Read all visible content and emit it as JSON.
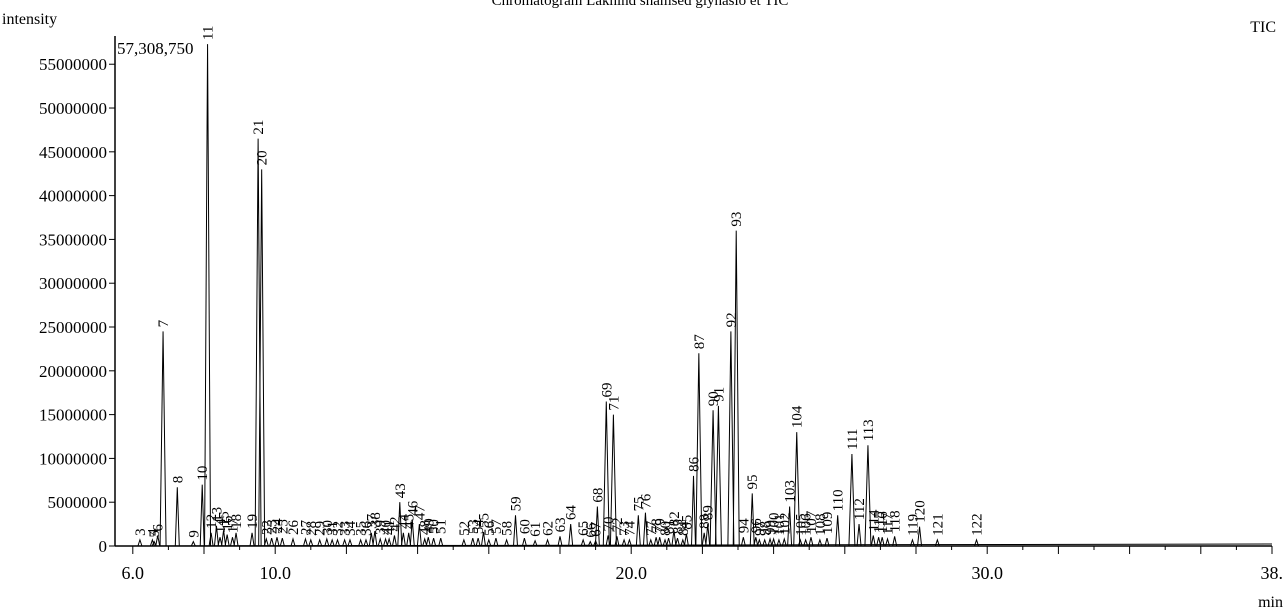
{
  "chart_data": {
    "type": "line",
    "title": "Chromatogram Lakhind shamsed glyhaslo et TIC",
    "ylabel": "intensity",
    "xlabel": "min",
    "series_label": "TIC",
    "xlim": [
      5.5,
      38.0
    ],
    "ylim": [
      0,
      57308750
    ],
    "x_ticks": [
      6.0,
      10.0,
      20.0,
      30.0,
      38.0
    ],
    "x_tick_labels": [
      "6.0",
      "10.0",
      "20.0",
      "30.0",
      "38."
    ],
    "y_ticks": [
      0,
      5000000,
      10000000,
      15000000,
      20000000,
      25000000,
      30000000,
      35000000,
      40000000,
      45000000,
      50000000,
      55000000
    ],
    "y_tick_labels": [
      "0",
      "5000000",
      "10000000",
      "15000000",
      "20000000",
      "25000000",
      "30000000",
      "35000000",
      "40000000",
      "45000000",
      "50000000",
      "55000000"
    ],
    "max_label": "57,308,750",
    "grid": false,
    "line_color": "#000000",
    "peaks": [
      {
        "label": "3",
        "rt": 6.2,
        "height": 700000
      },
      {
        "label": "4",
        "rt": 6.55,
        "height": 700000
      },
      {
        "label": "5",
        "rt": 6.6,
        "height": 500000
      },
      {
        "label": "6",
        "rt": 6.7,
        "height": 1200000
      },
      {
        "label": "7",
        "rt": 6.85,
        "height": 24500000
      },
      {
        "label": "8",
        "rt": 7.25,
        "height": 6700000
      },
      {
        "label": "9",
        "rt": 7.7,
        "height": 500000
      },
      {
        "label": "10",
        "rt": 7.95,
        "height": 7000000
      },
      {
        "label": "11",
        "rt": 8.1,
        "height": 57300000
      },
      {
        "label": "12",
        "rt": 8.2,
        "height": 1500000
      },
      {
        "label": "13",
        "rt": 8.35,
        "height": 2300000
      },
      {
        "label": "14",
        "rt": 8.45,
        "height": 1000000
      },
      {
        "label": "15",
        "rt": 8.55,
        "height": 1800000
      },
      {
        "label": "16",
        "rt": 8.65,
        "height": 1300000
      },
      {
        "label": "17",
        "rt": 8.8,
        "height": 1000000
      },
      {
        "label": "18",
        "rt": 8.9,
        "height": 1500000
      },
      {
        "label": "19",
        "rt": 9.35,
        "height": 1500000
      },
      {
        "label": "20",
        "rt": 9.62,
        "height": 43000000
      },
      {
        "label": "21",
        "rt": 9.52,
        "height": 46500000
      },
      {
        "label": "22",
        "rt": 9.75,
        "height": 800000
      },
      {
        "label": "23",
        "rt": 9.9,
        "height": 900000
      },
      {
        "label": "24",
        "rt": 10.05,
        "height": 1000000
      },
      {
        "label": "25",
        "rt": 10.2,
        "height": 900000
      },
      {
        "label": "26",
        "rt": 10.5,
        "height": 800000
      },
      {
        "label": "27",
        "rt": 10.85,
        "height": 800000
      },
      {
        "label": "28",
        "rt": 11.0,
        "height": 700000
      },
      {
        "label": "29",
        "rt": 11.25,
        "height": 700000
      },
      {
        "label": "30",
        "rt": 11.45,
        "height": 800000
      },
      {
        "label": "31",
        "rt": 11.6,
        "height": 700000
      },
      {
        "label": "32",
        "rt": 11.75,
        "height": 700000
      },
      {
        "label": "33",
        "rt": 11.95,
        "height": 700000
      },
      {
        "label": "34",
        "rt": 12.1,
        "height": 700000
      },
      {
        "label": "35",
        "rt": 12.4,
        "height": 700000
      },
      {
        "label": "36",
        "rt": 12.55,
        "height": 700000
      },
      {
        "label": "37",
        "rt": 12.7,
        "height": 1500000
      },
      {
        "label": "38",
        "rt": 12.8,
        "height": 1700000
      },
      {
        "label": "39",
        "rt": 12.95,
        "height": 800000
      },
      {
        "label": "40",
        "rt": 13.1,
        "height": 800000
      },
      {
        "label": "41",
        "rt": 13.2,
        "height": 800000
      },
      {
        "label": "42",
        "rt": 13.35,
        "height": 1200000
      },
      {
        "label": "43",
        "rt": 13.5,
        "height": 5000000
      },
      {
        "label": "44",
        "rt": 13.6,
        "height": 1500000
      },
      {
        "label": "45",
        "rt": 13.75,
        "height": 1500000
      },
      {
        "label": "46",
        "rt": 13.85,
        "height": 3000000
      },
      {
        "label": "47",
        "rt": 14.05,
        "height": 2500000
      },
      {
        "label": "48",
        "rt": 14.2,
        "height": 800000
      },
      {
        "label": "49",
        "rt": 14.3,
        "height": 1000000
      },
      {
        "label": "50",
        "rt": 14.45,
        "height": 900000
      },
      {
        "label": "51",
        "rt": 14.65,
        "height": 900000
      },
      {
        "label": "52",
        "rt": 15.3,
        "height": 700000
      },
      {
        "label": "53",
        "rt": 15.55,
        "height": 900000
      },
      {
        "label": "54",
        "rt": 15.7,
        "height": 900000
      },
      {
        "label": "55",
        "rt": 15.85,
        "height": 1600000
      },
      {
        "label": "56",
        "rt": 16.0,
        "height": 700000
      },
      {
        "label": "57",
        "rt": 16.2,
        "height": 900000
      },
      {
        "label": "58",
        "rt": 16.5,
        "height": 700000
      },
      {
        "label": "59",
        "rt": 16.75,
        "height": 3500000
      },
      {
        "label": "60",
        "rt": 17.0,
        "height": 900000
      },
      {
        "label": "61",
        "rt": 17.3,
        "height": 600000
      },
      {
        "label": "62",
        "rt": 17.65,
        "height": 700000
      },
      {
        "label": "63",
        "rt": 18.0,
        "height": 1100000
      },
      {
        "label": "64",
        "rt": 18.3,
        "height": 2500000
      },
      {
        "label": "65",
        "rt": 18.65,
        "height": 700000
      },
      {
        "label": "66",
        "rt": 18.85,
        "height": 500000
      },
      {
        "label": "67",
        "rt": 19.0,
        "height": 600000
      },
      {
        "label": "68",
        "rt": 19.05,
        "height": 4500000
      },
      {
        "label": "69",
        "rt": 19.3,
        "height": 16500000
      },
      {
        "label": "70",
        "rt": 19.35,
        "height": 1200000
      },
      {
        "label": "71",
        "rt": 19.5,
        "height": 15000000
      },
      {
        "label": "72",
        "rt": 19.6,
        "height": 1100000
      },
      {
        "label": "73",
        "rt": 19.8,
        "height": 700000
      },
      {
        "label": "74",
        "rt": 19.95,
        "height": 700000
      },
      {
        "label": "75",
        "rt": 20.2,
        "height": 3500000
      },
      {
        "label": "76",
        "rt": 20.4,
        "height": 3800000
      },
      {
        "label": "77",
        "rt": 20.55,
        "height": 700000
      },
      {
        "label": "78",
        "rt": 20.7,
        "height": 1000000
      },
      {
        "label": "79",
        "rt": 20.8,
        "height": 1000000
      },
      {
        "label": "80",
        "rt": 20.95,
        "height": 700000
      },
      {
        "label": "81",
        "rt": 21.05,
        "height": 900000
      },
      {
        "label": "82",
        "rt": 21.2,
        "height": 1800000
      },
      {
        "label": "83",
        "rt": 21.3,
        "height": 900000
      },
      {
        "label": "84",
        "rt": 21.45,
        "height": 700000
      },
      {
        "label": "85",
        "rt": 21.55,
        "height": 1400000
      },
      {
        "label": "86",
        "rt": 21.75,
        "height": 8000000
      },
      {
        "label": "87",
        "rt": 21.9,
        "height": 22000000
      },
      {
        "label": "88",
        "rt": 22.05,
        "height": 1500000
      },
      {
        "label": "89",
        "rt": 22.15,
        "height": 2500000
      },
      {
        "label": "90",
        "rt": 22.3,
        "height": 15500000
      },
      {
        "label": "91",
        "rt": 22.45,
        "height": 16000000
      },
      {
        "label": "92",
        "rt": 22.8,
        "height": 24500000
      },
      {
        "label": "93",
        "rt": 22.95,
        "height": 36000000
      },
      {
        "label": "94",
        "rt": 23.15,
        "height": 1000000
      },
      {
        "label": "95",
        "rt": 23.4,
        "height": 6000000
      },
      {
        "label": "96",
        "rt": 23.5,
        "height": 1000000
      },
      {
        "label": "97",
        "rt": 23.6,
        "height": 700000
      },
      {
        "label": "98",
        "rt": 23.75,
        "height": 700000
      },
      {
        "label": "99",
        "rt": 23.9,
        "height": 800000
      },
      {
        "label": "100",
        "rt": 24.0,
        "height": 800000
      },
      {
        "label": "101",
        "rt": 24.15,
        "height": 700000
      },
      {
        "label": "102",
        "rt": 24.3,
        "height": 800000
      },
      {
        "label": "103",
        "rt": 24.45,
        "height": 4500000
      },
      {
        "label": "104",
        "rt": 24.65,
        "height": 13000000
      },
      {
        "label": "105",
        "rt": 24.75,
        "height": 700000
      },
      {
        "label": "106",
        "rt": 24.9,
        "height": 700000
      },
      {
        "label": "107",
        "rt": 25.05,
        "height": 1000000
      },
      {
        "label": "108",
        "rt": 25.3,
        "height": 700000
      },
      {
        "label": "109",
        "rt": 25.5,
        "height": 900000
      },
      {
        "label": "110",
        "rt": 25.8,
        "height": 3500000
      },
      {
        "label": "111",
        "rt": 26.2,
        "height": 10500000
      },
      {
        "label": "112",
        "rt": 26.4,
        "height": 2500000
      },
      {
        "label": "113",
        "rt": 26.65,
        "height": 11500000
      },
      {
        "label": "114",
        "rt": 26.8,
        "height": 1200000
      },
      {
        "label": "115",
        "rt": 26.95,
        "height": 1000000
      },
      {
        "label": "116",
        "rt": 27.05,
        "height": 1000000
      },
      {
        "label": "117",
        "rt": 27.2,
        "height": 800000
      },
      {
        "label": "118",
        "rt": 27.4,
        "height": 1100000
      },
      {
        "label": "119",
        "rt": 27.9,
        "height": 700000
      },
      {
        "label": "120",
        "rt": 28.1,
        "height": 2200000
      },
      {
        "label": "121",
        "rt": 28.6,
        "height": 700000
      },
      {
        "label": "122",
        "rt": 29.7,
        "height": 700000
      }
    ]
  }
}
